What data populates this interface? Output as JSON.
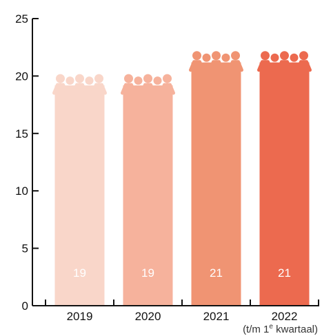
{
  "chart_data": {
    "type": "bar",
    "categories": [
      "2019",
      "2020",
      "2021",
      "2022"
    ],
    "values": [
      19,
      19,
      21,
      21
    ],
    "data_labels": [
      "19",
      "19",
      "21",
      "21"
    ],
    "ylim": [
      0,
      25
    ],
    "yticks": [
      "0",
      "5",
      "10",
      "15",
      "20",
      "25"
    ],
    "ytick_values": [
      0,
      5,
      10,
      15,
      20,
      25
    ],
    "note": "(t/m 1e kwartaal)",
    "bar_colors": [
      "#f9d6c9",
      "#f6b29c",
      "#f09473",
      "#ec6a4f"
    ],
    "grid": false,
    "bar_icon": "people-group-icon"
  }
}
